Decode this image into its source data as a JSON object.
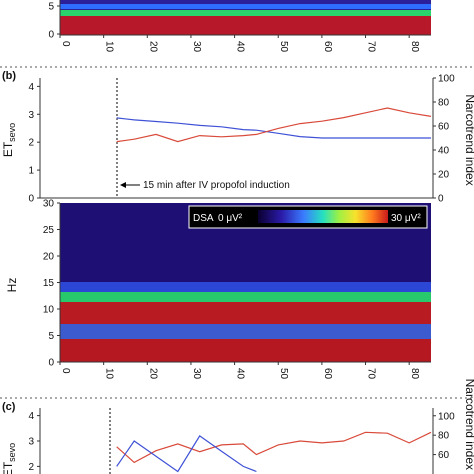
{
  "panels": {
    "b_label": "(b)",
    "c_label": "(c)"
  },
  "annotation": {
    "induction_note": "15 min after IV propofol induction"
  },
  "chart_data": [
    {
      "id": "panel_a_spectrogram_tail",
      "type": "heatmap",
      "xticks": [
        "0",
        "10",
        "20",
        "30",
        "40",
        "50",
        "60",
        "70",
        "80"
      ],
      "yticks": [
        "0",
        "5"
      ],
      "xlim": [
        0,
        85
      ]
    },
    {
      "id": "panel_b_trends",
      "type": "line",
      "ylabel_left": "ETsevo",
      "ylabel_right": "Narcotrend index",
      "ylim_left": [
        0,
        4.3
      ],
      "ylim_right": [
        0,
        100
      ],
      "yticks_left": [
        "0",
        "1",
        "2",
        "3",
        "4"
      ],
      "yticks_right": [
        "0",
        "20",
        "40",
        "60",
        "80",
        "100"
      ],
      "xlim": [
        0,
        85
      ],
      "event_x": 13,
      "series": [
        {
          "color": "#3f52d6",
          "axis": "left",
          "x": [
            13,
            17,
            22,
            27,
            32,
            37,
            42,
            45,
            50,
            55,
            60,
            65,
            70,
            75,
            80,
            85
          ],
          "y": [
            2.87,
            2.8,
            2.74,
            2.68,
            2.6,
            2.55,
            2.45,
            2.43,
            2.32,
            2.2,
            2.15,
            2.15,
            2.15,
            2.15,
            2.15,
            2.15
          ]
        },
        {
          "color": "#d94a3a",
          "axis": "right",
          "x": [
            13,
            17,
            22,
            27,
            32,
            37,
            42,
            45,
            50,
            55,
            60,
            65,
            70,
            75,
            80,
            85
          ],
          "y": [
            47,
            49,
            53,
            47,
            52,
            51,
            52,
            53,
            58,
            62,
            64,
            67,
            71,
            75,
            71,
            68
          ]
        }
      ]
    },
    {
      "id": "panel_b_dsa",
      "type": "heatmap",
      "ylabel": "Hz",
      "xlim": [
        0,
        85
      ],
      "ylim": [
        0,
        30
      ],
      "xticks": [
        "0",
        "10",
        "20",
        "30",
        "40",
        "50",
        "60",
        "70",
        "80"
      ],
      "yticks": [
        "0",
        "5",
        "10",
        "15",
        "20",
        "25",
        "30"
      ],
      "colorbar_label": "DSA",
      "colorbar_min": "0 μV²",
      "colorbar_max": "30 μV²"
    },
    {
      "id": "panel_c_trends",
      "type": "line",
      "ylabel_left": "ETsevo",
      "ylabel_right": "Narcotrend index",
      "yticks_left": [
        "2",
        "3",
        "4"
      ],
      "yticks_right": [
        "60",
        "80",
        "100"
      ],
      "series": [
        {
          "color": "#d94a3a",
          "axis": "right",
          "x": [
            13,
            17,
            22,
            27,
            32,
            37,
            42,
            45,
            50,
            55,
            60,
            65,
            70,
            75,
            80,
            85
          ],
          "y": [
            68,
            52,
            64,
            71,
            63,
            70,
            71,
            60,
            70,
            74,
            72,
            74,
            83,
            82,
            72,
            83
          ]
        },
        {
          "color": "#3f52d6",
          "axis": "left",
          "x": [
            13,
            17,
            22,
            27,
            32,
            37,
            42,
            45,
            50,
            55,
            60,
            65,
            70,
            75,
            80,
            85
          ],
          "y": [
            2.0,
            3.0,
            2.4,
            1.8,
            3.2,
            2.6,
            2.0,
            1.8,
            null,
            null,
            null,
            null,
            null,
            null,
            null,
            null
          ]
        }
      ]
    }
  ]
}
